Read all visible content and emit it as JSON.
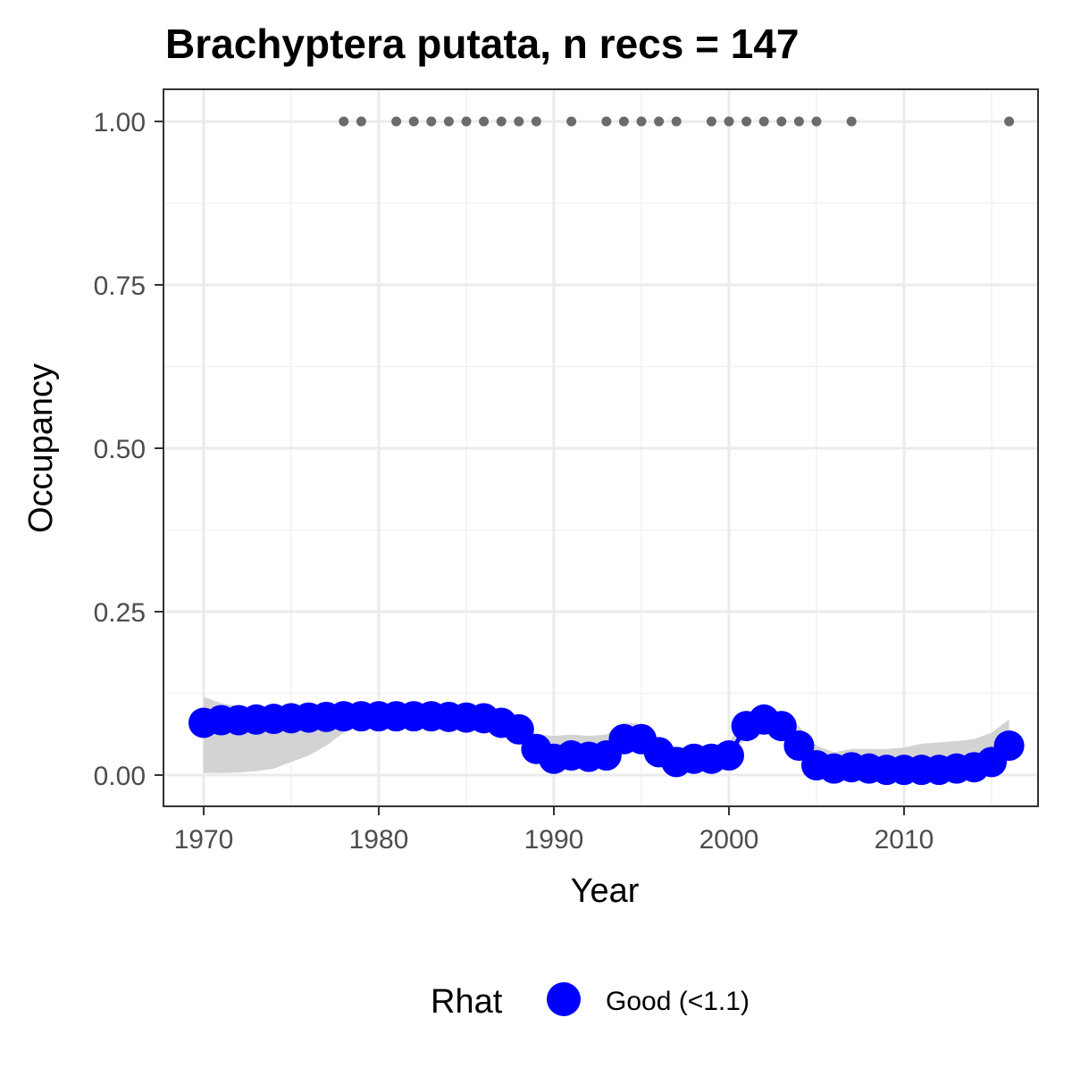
{
  "chart_data": {
    "type": "line",
    "title": "Brachyptera putata, n recs = 147",
    "xlabel": "Year",
    "ylabel": "Occupancy",
    "xlim": [
      1967.8,
      2017.7
    ],
    "ylim": [
      -0.05,
      1.05
    ],
    "x_ticks": [
      1970,
      1980,
      1990,
      2000,
      2010
    ],
    "x_tick_labels": [
      "1970",
      "1980",
      "1990",
      "2000",
      "2010"
    ],
    "y_ticks": [
      0,
      0.25,
      0.5,
      0.75,
      1
    ],
    "y_tick_labels": [
      "0.00",
      "0.25",
      "0.50",
      "0.75",
      "1.00"
    ],
    "grid": true,
    "legend": {
      "position": "bottom",
      "title": "Rhat",
      "entries": [
        {
          "label": "Good (<1.1)",
          "color": "#0000ff"
        }
      ]
    },
    "series": [
      {
        "name": "Good (<1.1)",
        "color": "#0000ff",
        "x": [
          1970,
          1971,
          1972,
          1973,
          1974,
          1975,
          1976,
          1977,
          1978,
          1979,
          1980,
          1981,
          1982,
          1983,
          1984,
          1985,
          1986,
          1987,
          1988,
          1989,
          1990,
          1991,
          1992,
          1993,
          1994,
          1995,
          1996,
          1997,
          1998,
          1999,
          2000,
          2001,
          2002,
          2003,
          2004,
          2005,
          2006,
          2007,
          2008,
          2009,
          2010,
          2011,
          2012,
          2013,
          2014,
          2015,
          2016
        ],
        "y": [
          0.08,
          0.084,
          0.084,
          0.085,
          0.086,
          0.087,
          0.088,
          0.089,
          0.09,
          0.09,
          0.09,
          0.09,
          0.09,
          0.09,
          0.089,
          0.088,
          0.087,
          0.08,
          0.07,
          0.04,
          0.025,
          0.03,
          0.028,
          0.03,
          0.055,
          0.055,
          0.035,
          0.02,
          0.025,
          0.025,
          0.03,
          0.075,
          0.085,
          0.075,
          0.045,
          0.015,
          0.01,
          0.012,
          0.01,
          0.008,
          0.008,
          0.008,
          0.008,
          0.01,
          0.012,
          0.02,
          0.045
        ]
      }
    ],
    "credible_interval": {
      "color": "#d3d3d3",
      "lower": [
        0.003,
        0.003,
        0.004,
        0.006,
        0.01,
        0.02,
        0.03,
        0.045,
        0.065,
        0.08,
        0.085,
        0.085,
        0.085,
        0.085,
        0.085,
        0.082,
        0.078,
        0.07,
        0.058,
        0.035,
        0.02,
        0.022,
        0.02,
        0.022,
        0.04,
        0.042,
        0.028,
        0.015,
        0.018,
        0.018,
        0.022,
        0.06,
        0.07,
        0.06,
        0.035,
        0.01,
        0.005,
        0.006,
        0.005,
        0.004,
        0.004,
        0.004,
        0.004,
        0.005,
        0.006,
        0.01,
        0.025
      ],
      "upper": [
        0.12,
        0.11,
        0.105,
        0.1,
        0.1,
        0.1,
        0.1,
        0.1,
        0.1,
        0.1,
        0.098,
        0.098,
        0.098,
        0.097,
        0.096,
        0.094,
        0.092,
        0.088,
        0.08,
        0.062,
        0.06,
        0.062,
        0.06,
        0.062,
        0.08,
        0.078,
        0.055,
        0.042,
        0.045,
        0.045,
        0.05,
        0.095,
        0.1,
        0.095,
        0.075,
        0.045,
        0.035,
        0.04,
        0.04,
        0.04,
        0.042,
        0.048,
        0.05,
        0.052,
        0.055,
        0.065,
        0.085
      ]
    },
    "records": {
      "color": "#6b6b6b",
      "y": 1,
      "x": [
        1978,
        1979,
        1981,
        1982,
        1983,
        1984,
        1985,
        1986,
        1987,
        1988,
        1989,
        1991,
        1993,
        1994,
        1995,
        1996,
        1997,
        1999,
        2000,
        2001,
        2002,
        2003,
        2004,
        2005,
        2007,
        2016
      ]
    }
  }
}
